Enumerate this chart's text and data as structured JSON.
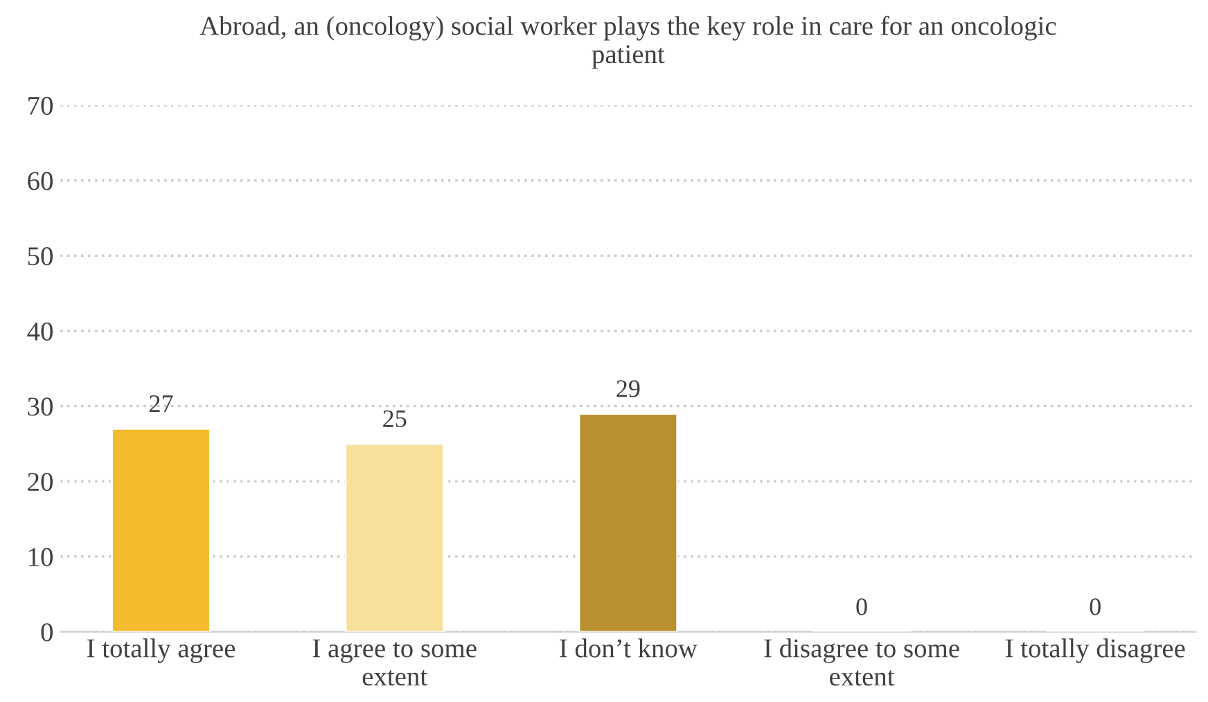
{
  "chart_data": {
    "type": "bar",
    "title": "Abroad, an (oncology) social worker plays the key role in care for an oncologic patient",
    "categories": [
      "I totally agree",
      "I agree to some extent",
      "I don’t know",
      "I disagree to some extent",
      "I totally disagree"
    ],
    "values": [
      27,
      25,
      29,
      0,
      0
    ],
    "colors": [
      "#f4bc2c",
      "#f7e09a",
      "#b8912e",
      null,
      null
    ],
    "ylim": [
      0,
      70
    ],
    "yticks": [
      0,
      10,
      20,
      30,
      40,
      50,
      60,
      70
    ],
    "grid": "y",
    "data_labels": true
  }
}
